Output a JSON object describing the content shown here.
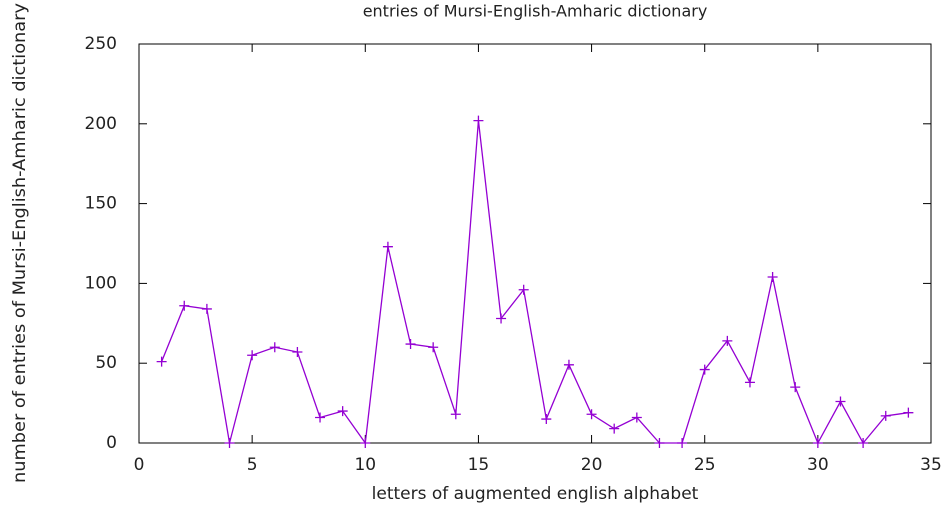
{
  "chart_data": {
    "type": "line",
    "title": "entries of Mursi-English-Amharic dictionary",
    "x_label": "letters of augmented english alphabet",
    "y_label": "number of entries of Mursi-English-Amharic dictionary",
    "x": [
      1,
      2,
      3,
      4,
      5,
      6,
      7,
      8,
      9,
      10,
      11,
      12,
      13,
      14,
      15,
      16,
      17,
      18,
      19,
      20,
      21,
      22,
      23,
      24,
      25,
      26,
      27,
      28,
      29,
      30,
      31,
      32,
      33,
      34
    ],
    "series": [
      {
        "color": "#9400d3",
        "values": [
          51,
          86,
          84,
          0,
          55,
          60,
          57,
          16,
          20,
          0,
          123,
          62,
          60,
          18,
          202,
          78,
          96,
          15,
          49,
          18,
          9,
          16,
          0,
          0,
          46,
          64,
          38,
          104,
          35,
          0,
          26,
          0,
          17,
          19
        ]
      }
    ],
    "xlim": [
      0,
      35
    ],
    "xticks": [
      0,
      5,
      10,
      15,
      20,
      25,
      30,
      35
    ],
    "ylim": [
      0,
      250
    ],
    "yticks": [
      0,
      50,
      100,
      150,
      200,
      250
    ],
    "grid": false
  }
}
